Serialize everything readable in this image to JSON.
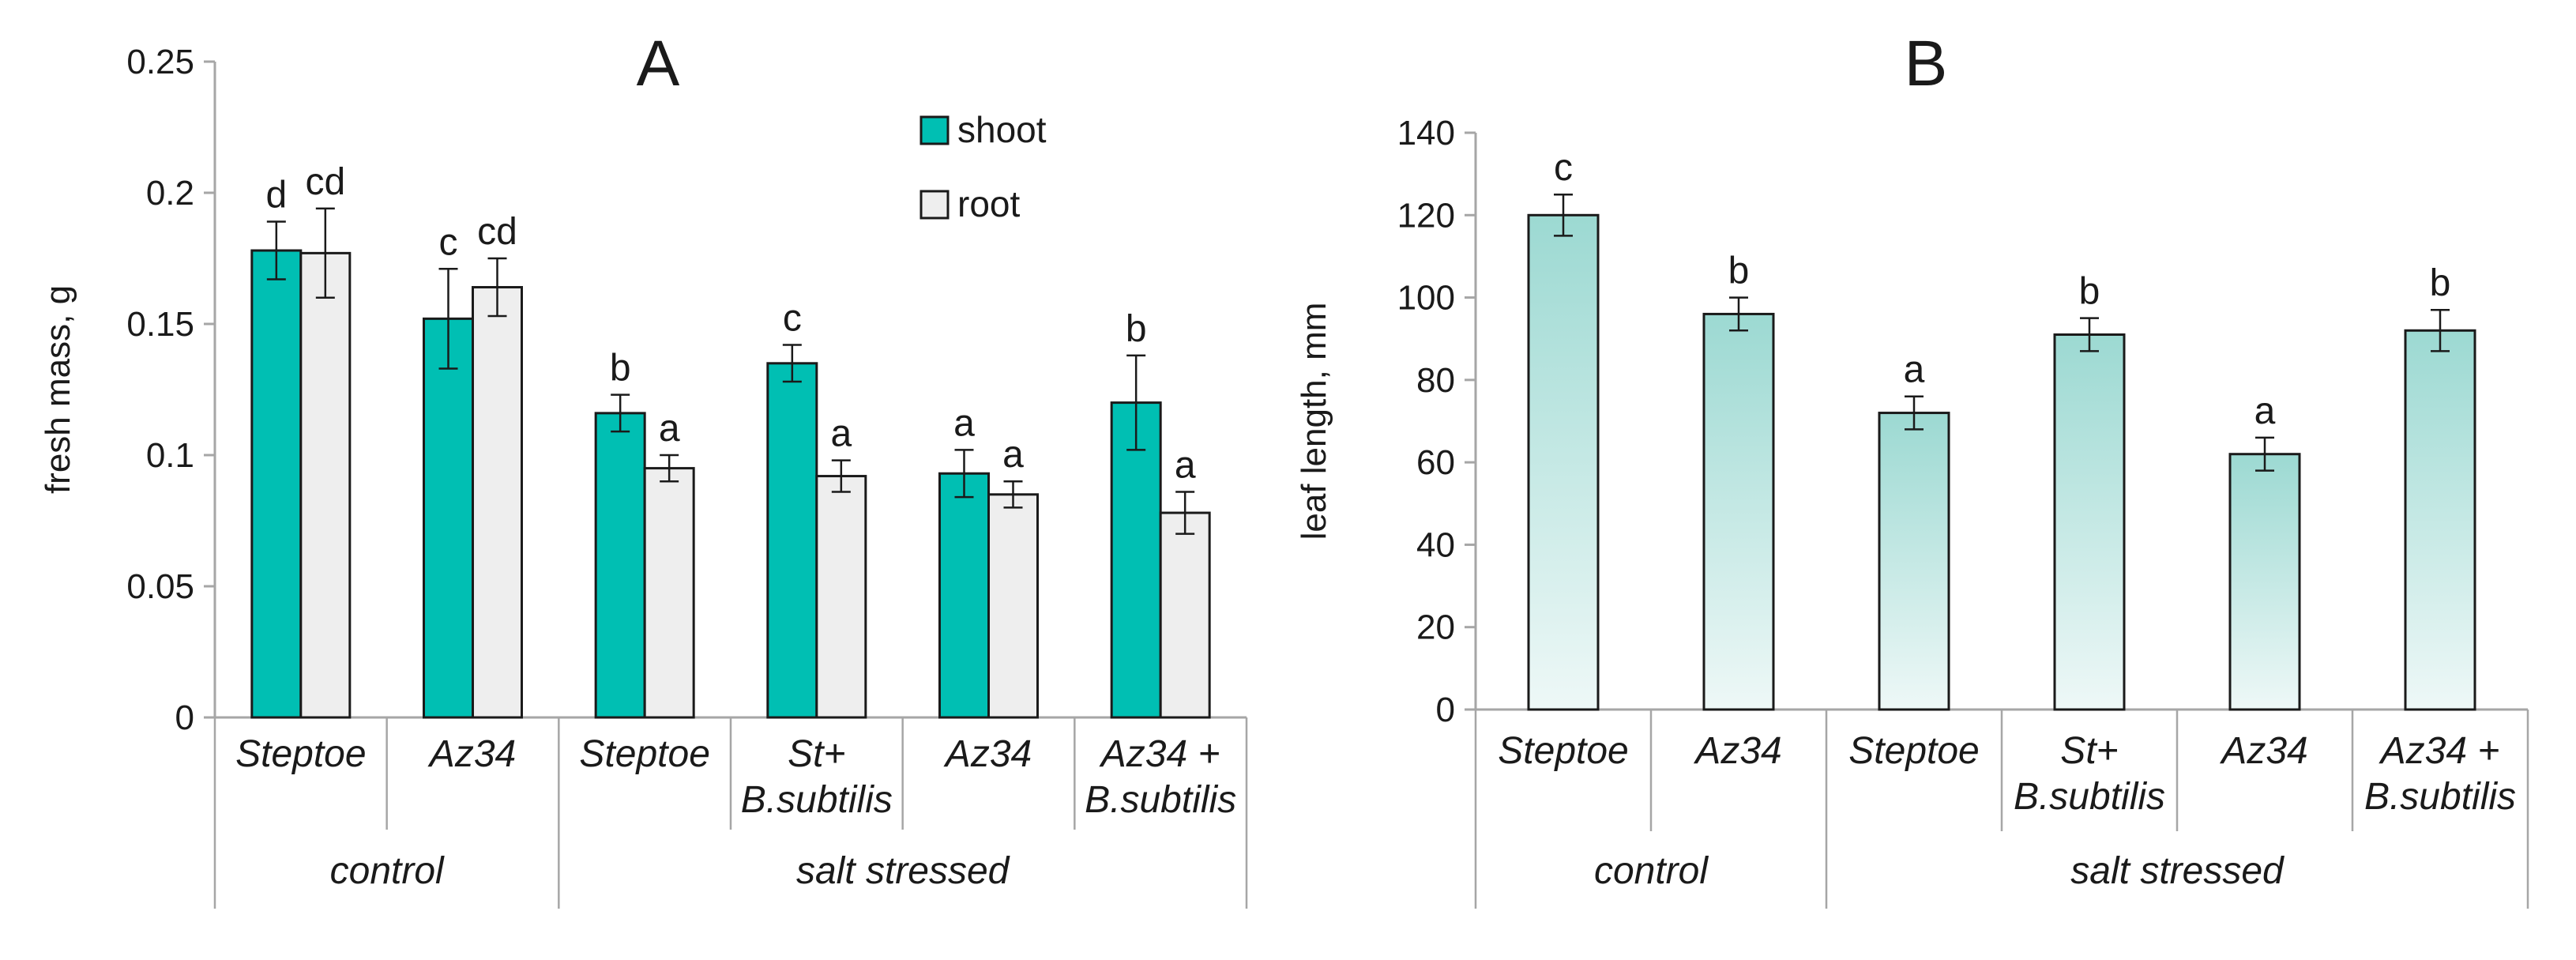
{
  "colors": {
    "shoot": "#00bfb3",
    "root": "#eeeeee",
    "leaf_top": "#9cd9d2",
    "leaf_bottom": "#eef8f7",
    "axis": "#a6a6a6",
    "bar_edge": "#1a1a1a"
  },
  "chart_data": [
    {
      "type": "bar",
      "panel": "A",
      "title": "A",
      "ylabel": "fresh mass, g",
      "xlabel": "",
      "ylim": [
        0,
        0.25
      ],
      "yticks": [
        "0",
        "0.05",
        "0.1",
        "0.15",
        "0.2",
        "0.25"
      ],
      "grid": false,
      "legend_position": "top-center",
      "categories": [
        "Steptoe",
        "Az34",
        "Steptoe",
        "St+ B.subtilis",
        "Az34",
        "Az34 + B.subtilis"
      ],
      "category_lines": [
        [
          "Steptoe"
        ],
        [
          "Az34"
        ],
        [
          "Steptoe"
        ],
        [
          "St+",
          "B.subtilis"
        ],
        [
          "Az34"
        ],
        [
          "Az34 +",
          "B.subtilis"
        ]
      ],
      "groups": [
        {
          "label": "control",
          "span": [
            0,
            1
          ]
        },
        {
          "label": "salt stressed",
          "span": [
            2,
            5
          ]
        }
      ],
      "series": [
        {
          "name": "shoot",
          "values": [
            0.178,
            0.152,
            0.116,
            0.135,
            0.093,
            0.12
          ],
          "errors": [
            0.011,
            0.019,
            0.007,
            0.007,
            0.009,
            0.018
          ],
          "labels": [
            "d",
            "c",
            "b",
            "c",
            "a",
            "b"
          ]
        },
        {
          "name": "root",
          "values": [
            0.177,
            0.164,
            0.095,
            0.092,
            0.085,
            0.078
          ],
          "errors": [
            0.017,
            0.011,
            0.005,
            0.006,
            0.005,
            0.008
          ],
          "labels": [
            "cd",
            "cd",
            "a",
            "a",
            "a",
            "a"
          ]
        }
      ]
    },
    {
      "type": "bar",
      "panel": "B",
      "title": "B",
      "ylabel": "leaf length, mm",
      "xlabel": "",
      "ylim": [
        0,
        140
      ],
      "yticks": [
        "0",
        "20",
        "40",
        "60",
        "80",
        "100",
        "120",
        "140"
      ],
      "grid": false,
      "categories": [
        "Steptoe",
        "Az34",
        "Steptoe",
        "St+ B.subtilis",
        "Az34",
        "Az34 + B.subtilis"
      ],
      "category_lines": [
        [
          "Steptoe"
        ],
        [
          "Az34"
        ],
        [
          "Steptoe"
        ],
        [
          "St+",
          "B.subtilis"
        ],
        [
          "Az34"
        ],
        [
          "Az34 +",
          "B.subtilis"
        ]
      ],
      "groups": [
        {
          "label": "control",
          "span": [
            0,
            1
          ]
        },
        {
          "label": "salt stressed",
          "span": [
            2,
            5
          ]
        }
      ],
      "series": [
        {
          "name": "leaf length",
          "values": [
            120,
            96,
            72,
            91,
            62,
            92
          ],
          "errors": [
            5,
            4,
            4,
            4,
            4,
            5
          ],
          "labels": [
            "c",
            "b",
            "a",
            "b",
            "a",
            "b"
          ]
        }
      ]
    }
  ]
}
